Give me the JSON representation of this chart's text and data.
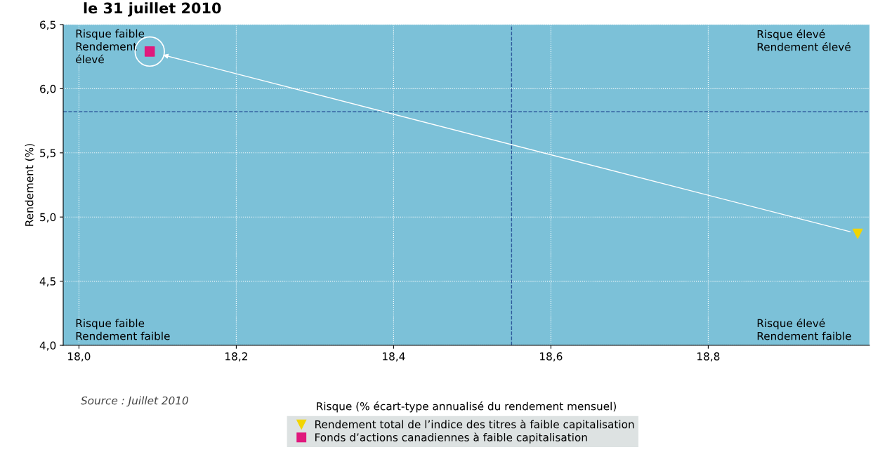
{
  "chart_data": {
    "type": "scatter",
    "title": "le 31 juillet 2010",
    "xlabel": "Risque (% écart-type annualisé du rendement mensuel)",
    "ylabel": "Rendement (%)",
    "xlim": [
      17.98,
      19.005
    ],
    "ylim": [
      4.0,
      6.5
    ],
    "xticks": [
      {
        "value": 18.0,
        "label": "18,0"
      },
      {
        "value": 18.2,
        "label": "18,2"
      },
      {
        "value": 18.4,
        "label": "18,4"
      },
      {
        "value": 18.6,
        "label": "18,6"
      },
      {
        "value": 18.8,
        "label": "18,8"
      }
    ],
    "yticks": [
      {
        "value": 4.0,
        "label": "4,0"
      },
      {
        "value": 4.5,
        "label": "4,5"
      },
      {
        "value": 5.0,
        "label": "5,0"
      },
      {
        "value": 5.5,
        "label": "5,5"
      },
      {
        "value": 6.0,
        "label": "6,0"
      },
      {
        "value": 6.5,
        "label": "6,5"
      }
    ],
    "series": [
      {
        "name": "Rendement total de l’indice des titres à faible capitalisation",
        "color": "#f2d500",
        "marker": "triangle",
        "x": [
          18.99
        ],
        "values": [
          4.87
        ]
      },
      {
        "name": "Fonds d’actions canadiennes à faible capitalisation",
        "color": "#e0197d",
        "marker": "square",
        "x": [
          18.09
        ],
        "values": [
          6.29
        ]
      }
    ],
    "ref_lines": [
      {
        "axis": "x",
        "value": 18.55,
        "color": "#2e5a9c",
        "line_style": "dashed"
      },
      {
        "axis": "y",
        "value": 5.82,
        "color": "#2e5a9c",
        "line_style": "dashed"
      }
    ],
    "annotations": [
      "Risque faible\nRendement\nélevé",
      "Risque élevé\nRendement élevé",
      "Risque faible\nRendement faible",
      "Risque élevé\nRendement faible",
      "Source : Juillet 2010"
    ],
    "grid": true,
    "legend": "bottom"
  }
}
